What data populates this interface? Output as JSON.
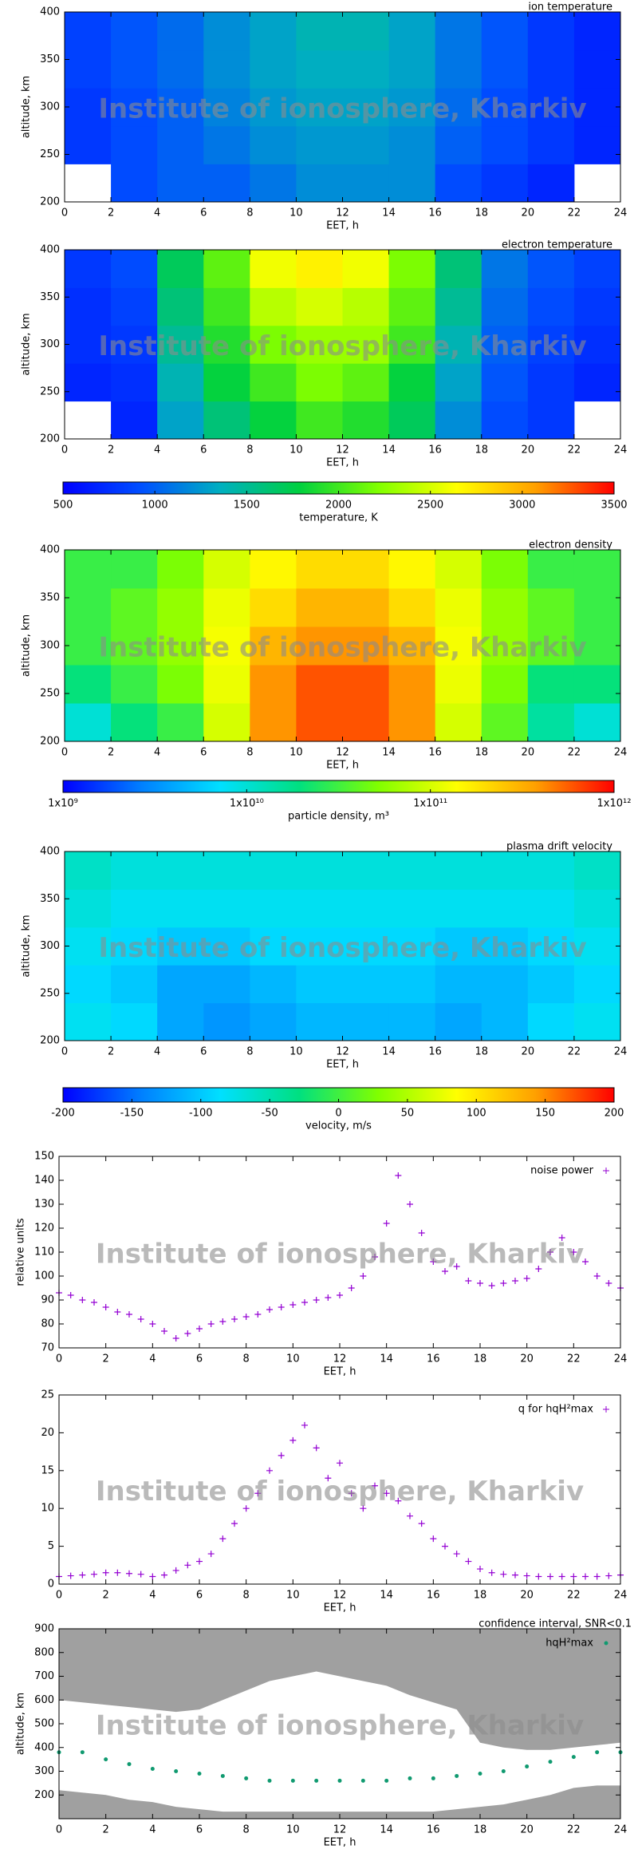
{
  "chart_data": [
    {
      "type": "heatmap",
      "title": "ion temperature",
      "xlabel": "EET, h",
      "ylabel": "altitude, km",
      "watermark": "Institute of ionosphere, Kharkiv",
      "x": [
        1,
        3,
        5,
        7,
        9,
        11,
        13,
        15,
        17,
        19,
        21,
        23
      ],
      "y": [
        220,
        260,
        300,
        340,
        380
      ],
      "z": [
        [
          null,
          900,
          1000,
          1000,
          1100,
          1200,
          1200,
          1200,
          900,
          800,
          700,
          null
        ],
        [
          800,
          900,
          1000,
          1100,
          1200,
          1250,
          1250,
          1200,
          1000,
          900,
          800,
          700
        ],
        [
          800,
          900,
          1000,
          1150,
          1250,
          1300,
          1300,
          1250,
          1050,
          900,
          800,
          700
        ],
        [
          850,
          950,
          1050,
          1200,
          1300,
          1350,
          1350,
          1300,
          1100,
          950,
          800,
          700
        ],
        [
          850,
          950,
          1050,
          1200,
          1300,
          1400,
          1400,
          1300,
          1100,
          950,
          800,
          700
        ]
      ],
      "zlim": [
        500,
        3500
      ],
      "colormap": [
        "#0000ff",
        "#0050ff",
        "#00b0c0",
        "#00d040",
        "#80ff00",
        "#ffff00",
        "#ffa000",
        "#ff0000"
      ],
      "xlim": [
        0,
        24
      ],
      "xticks": [
        0,
        2,
        4,
        6,
        8,
        10,
        12,
        14,
        16,
        18,
        20,
        22,
        24
      ],
      "ylim": [
        200,
        400
      ],
      "yticks": [
        200,
        250,
        300,
        350,
        400
      ]
    },
    {
      "type": "heatmap",
      "title": "electron temperature",
      "xlabel": "EET, h",
      "ylabel": "altitude, km",
      "watermark": "Institute of ionosphere, Kharkiv",
      "x": [
        1,
        3,
        5,
        7,
        9,
        11,
        13,
        15,
        17,
        19,
        21,
        23
      ],
      "y": [
        220,
        260,
        300,
        340,
        380
      ],
      "z": [
        [
          null,
          700,
          1300,
          1600,
          1800,
          2000,
          1900,
          1700,
          1200,
          900,
          800,
          null
        ],
        [
          700,
          750,
          1400,
          1800,
          2000,
          2200,
          2100,
          1800,
          1300,
          950,
          800,
          700
        ],
        [
          750,
          800,
          1500,
          1900,
          2200,
          2300,
          2300,
          2000,
          1400,
          1000,
          850,
          750
        ],
        [
          750,
          850,
          1600,
          2000,
          2400,
          2500,
          2400,
          2100,
          1500,
          1050,
          900,
          800
        ],
        [
          800,
          900,
          1700,
          2100,
          2600,
          2700,
          2600,
          2200,
          1600,
          1100,
          950,
          850
        ]
      ],
      "zlim": [
        500,
        3500
      ],
      "colormap": [
        "#0000ff",
        "#0050ff",
        "#00b0c0",
        "#00d040",
        "#80ff00",
        "#ffff00",
        "#ffa000",
        "#ff0000"
      ],
      "xlim": [
        0,
        24
      ],
      "xticks": [
        0,
        2,
        4,
        6,
        8,
        10,
        12,
        14,
        16,
        18,
        20,
        22,
        24
      ],
      "ylim": [
        200,
        400
      ],
      "yticks": [
        200,
        250,
        300,
        350,
        400
      ]
    },
    {
      "type": "colorbar",
      "xlabel": "temperature, K",
      "colormap": [
        "#0000ff",
        "#0050ff",
        "#00b0c0",
        "#00d040",
        "#80ff00",
        "#ffff00",
        "#ffa000",
        "#ff0000"
      ],
      "xlim": [
        500,
        3500
      ],
      "xticks": [
        500,
        1000,
        1500,
        2000,
        2500,
        3000,
        3500
      ]
    },
    {
      "type": "heatmap",
      "title": "electron density",
      "xlabel": "EET, h",
      "ylabel": "altitude, km",
      "watermark": "Institute of ionosphere, Kharkiv",
      "x": [
        1,
        3,
        5,
        7,
        9,
        11,
        13,
        15,
        17,
        19,
        21,
        23
      ],
      "y": [
        220,
        260,
        300,
        340,
        380
      ],
      "z": [
        [
          10000000000.0,
          20000000000.0,
          30000000000.0,
          100000000000.0,
          400000000000.0,
          600000000000.0,
          600000000000.0,
          400000000000.0,
          100000000000.0,
          40000000000.0,
          15000000000.0,
          10000000000.0
        ],
        [
          20000000000.0,
          30000000000.0,
          50000000000.0,
          120000000000.0,
          400000000000.0,
          600000000000.0,
          600000000000.0,
          400000000000.0,
          120000000000.0,
          50000000000.0,
          20000000000.0,
          20000000000.0
        ],
        [
          30000000000.0,
          40000000000.0,
          60000000000.0,
          130000000000.0,
          300000000000.0,
          400000000000.0,
          400000000000.0,
          300000000000.0,
          130000000000.0,
          60000000000.0,
          40000000000.0,
          30000000000.0
        ],
        [
          30000000000.0,
          40000000000.0,
          60000000000.0,
          120000000000.0,
          200000000000.0,
          300000000000.0,
          300000000000.0,
          200000000000.0,
          120000000000.0,
          60000000000.0,
          40000000000.0,
          30000000000.0
        ],
        [
          30000000000.0,
          30000000000.0,
          50000000000.0,
          100000000000.0,
          150000000000.0,
          200000000000.0,
          200000000000.0,
          150000000000.0,
          100000000000.0,
          50000000000.0,
          30000000000.0,
          30000000000.0
        ]
      ],
      "zlim": [
        1000000000.0,
        1000000000000.0
      ],
      "zlog": true,
      "colormap": [
        "#0000ff",
        "#0080ff",
        "#00e0ff",
        "#00e080",
        "#80ff00",
        "#ffff00",
        "#ffa000",
        "#ff0000"
      ],
      "xlim": [
        0,
        24
      ],
      "xticks": [
        0,
        2,
        4,
        6,
        8,
        10,
        12,
        14,
        16,
        18,
        20,
        22,
        24
      ],
      "ylim": [
        200,
        400
      ],
      "yticks": [
        200,
        250,
        300,
        350,
        400
      ]
    },
    {
      "type": "colorbar",
      "xlabel": "particle density, m³",
      "log": true,
      "colormap": [
        "#0000ff",
        "#0080ff",
        "#00e0ff",
        "#00e080",
        "#80ff00",
        "#ffff00",
        "#ffa000",
        "#ff0000"
      ],
      "xlim": [
        1000000000.0,
        1000000000000.0
      ],
      "xticks": [
        {
          "value": 1000000000.0,
          "label": "1x10⁹"
        },
        {
          "value": 10000000000.0,
          "label": "1x10¹⁰"
        },
        {
          "value": 100000000000.0,
          "label": "1x10¹¹"
        },
        {
          "value": 1000000000000.0,
          "label": "1x10¹²"
        }
      ]
    },
    {
      "type": "heatmap",
      "title": "plasma drift velocity",
      "xlabel": "EET, h",
      "ylabel": "altitude, km",
      "watermark": "Institute of ionosphere, Kharkiv",
      "x": [
        1,
        3,
        5,
        7,
        9,
        11,
        13,
        15,
        17,
        19,
        21,
        23
      ],
      "y": [
        220,
        260,
        300,
        340,
        380
      ],
      "z": [
        [
          -80,
          -90,
          -120,
          -130,
          -120,
          -110,
          -110,
          -110,
          -120,
          -110,
          -90,
          -80
        ],
        [
          -90,
          -100,
          -120,
          -120,
          -110,
          -100,
          -100,
          -100,
          -110,
          -110,
          -100,
          -90
        ],
        [
          -80,
          -90,
          -100,
          -100,
          -90,
          -90,
          -90,
          -90,
          -100,
          -100,
          -90,
          -80
        ],
        [
          -70,
          -80,
          -80,
          -80,
          -80,
          -80,
          -80,
          -80,
          -80,
          -80,
          -80,
          -70
        ],
        [
          -60,
          -70,
          -70,
          -70,
          -70,
          -70,
          -70,
          -70,
          -70,
          -70,
          -70,
          -60
        ]
      ],
      "zlim": [
        -200,
        200
      ],
      "colormap": [
        "#0000ff",
        "#0080ff",
        "#00e0ff",
        "#00e080",
        "#80ff00",
        "#ffff00",
        "#ffa000",
        "#ff0000"
      ],
      "xlim": [
        0,
        24
      ],
      "xticks": [
        0,
        2,
        4,
        6,
        8,
        10,
        12,
        14,
        16,
        18,
        20,
        22,
        24
      ],
      "ylim": [
        200,
        400
      ],
      "yticks": [
        200,
        250,
        300,
        350,
        400
      ]
    },
    {
      "type": "colorbar",
      "xlabel": "velocity, m/s",
      "colormap": [
        "#0000ff",
        "#0080ff",
        "#00e0ff",
        "#00e080",
        "#80ff00",
        "#ffff00",
        "#ffa000",
        "#ff0000"
      ],
      "xlim": [
        -200,
        200
      ],
      "xticks": [
        -200,
        -150,
        -100,
        -50,
        0,
        50,
        100,
        150,
        200
      ]
    },
    {
      "type": "scatter",
      "xlabel": "EET, h",
      "ylabel": "relative units",
      "watermark": "Institute of ionosphere, Kharkiv",
      "x": [
        0,
        0.5,
        1,
        1.5,
        2,
        2.5,
        3,
        3.5,
        4,
        4.5,
        5,
        5.5,
        6,
        6.5,
        7,
        7.5,
        8,
        8.5,
        9,
        9.5,
        10,
        10.5,
        11,
        11.5,
        12,
        12.5,
        13,
        13.5,
        14,
        14.5,
        15,
        15.5,
        16,
        16.5,
        17,
        17.5,
        18,
        18.5,
        19,
        19.5,
        20,
        20.5,
        21,
        21.5,
        22,
        22.5,
        23,
        23.5,
        24
      ],
      "series": [
        {
          "name": "noise power",
          "color": "#9400d3",
          "marker": "plus",
          "values": [
            93,
            92,
            90,
            89,
            87,
            85,
            84,
            82,
            80,
            77,
            74,
            76,
            78,
            80,
            81,
            82,
            83,
            84,
            86,
            87,
            88,
            89,
            90,
            91,
            92,
            95,
            100,
            108,
            122,
            142,
            130,
            118,
            106,
            102,
            104,
            98,
            97,
            96,
            97,
            98,
            99,
            103,
            110,
            116,
            110,
            106,
            100,
            97,
            95
          ]
        }
      ],
      "xlim": [
        0,
        24
      ],
      "xticks": [
        0,
        2,
        4,
        6,
        8,
        10,
        12,
        14,
        16,
        18,
        20,
        22,
        24
      ],
      "ylim": [
        70,
        150
      ],
      "yticks": [
        70,
        80,
        90,
        100,
        110,
        120,
        130,
        140,
        150
      ]
    },
    {
      "type": "scatter",
      "xlabel": "EET, h",
      "watermark": "Institute of ionosphere, Kharkiv",
      "x": [
        0,
        0.5,
        1,
        1.5,
        2,
        2.5,
        3,
        3.5,
        4,
        4.5,
        5,
        5.5,
        6,
        6.5,
        7,
        7.5,
        8,
        8.5,
        9,
        9.5,
        10,
        10.5,
        11,
        11.5,
        12,
        12.5,
        13,
        13.5,
        14,
        14.5,
        15,
        15.5,
        16,
        16.5,
        17,
        17.5,
        18,
        18.5,
        19,
        19.5,
        20,
        20.5,
        21,
        21.5,
        22,
        22.5,
        23,
        23.5,
        24
      ],
      "series": [
        {
          "name": "q for hqH²max",
          "color": "#9400d3",
          "marker": "plus",
          "values": [
            1.0,
            1.1,
            1.2,
            1.3,
            1.5,
            1.5,
            1.4,
            1.3,
            1.0,
            1.2,
            1.8,
            2.5,
            3.0,
            4.0,
            6,
            8,
            10,
            12,
            15,
            17,
            19,
            21,
            18,
            14,
            16,
            12,
            10,
            13,
            12,
            11,
            9,
            8,
            6,
            5,
            4,
            3,
            2,
            1.5,
            1.3,
            1.2,
            1.1,
            1.0,
            1.0,
            1.0,
            1.0,
            1.0,
            1.0,
            1.1,
            1.2
          ]
        }
      ],
      "xlim": [
        0,
        24
      ],
      "xticks": [
        0,
        2,
        4,
        6,
        8,
        10,
        12,
        14,
        16,
        18,
        20,
        22,
        24
      ],
      "ylim": [
        0,
        25
      ],
      "yticks": [
        0,
        5,
        10,
        15,
        20,
        25
      ]
    },
    {
      "type": "scatter",
      "xlabel": "EET, h",
      "ylabel": "altitude, km",
      "watermark": "Institute of ionosphere, Kharkiv",
      "x": [
        0,
        1,
        2,
        3,
        4,
        5,
        6,
        7,
        8,
        9,
        10,
        11,
        12,
        13,
        14,
        15,
        16,
        17,
        18,
        19,
        20,
        21,
        22,
        23,
        24
      ],
      "series": [
        {
          "name": "confidence interval, SNR<0.1",
          "color": "#a0a0a0",
          "upper": [
            600,
            590,
            580,
            570,
            560,
            550,
            560,
            600,
            640,
            680,
            700,
            720,
            700,
            680,
            660,
            620,
            590,
            560,
            420,
            400,
            390,
            390,
            400,
            410,
            420
          ],
          "lower": [
            220,
            210,
            200,
            180,
            170,
            150,
            140,
            130,
            130,
            130,
            130,
            130,
            130,
            130,
            130,
            130,
            130,
            140,
            150,
            160,
            180,
            200,
            230,
            240,
            240
          ]
        },
        {
          "name": "hqH²max",
          "color": "#109a70",
          "marker": "dot",
          "values": [
            380,
            380,
            350,
            330,
            310,
            300,
            290,
            280,
            270,
            260,
            260,
            260,
            260,
            260,
            260,
            270,
            270,
            280,
            290,
            300,
            320,
            340,
            360,
            380,
            380
          ]
        }
      ],
      "xlim": [
        0,
        24
      ],
      "xticks": [
        0,
        2,
        4,
        6,
        8,
        10,
        12,
        14,
        16,
        18,
        20,
        22,
        24
      ],
      "ylim": [
        100,
        900
      ],
      "yticks": [
        200,
        300,
        400,
        500,
        600,
        700,
        800,
        900
      ]
    }
  ]
}
